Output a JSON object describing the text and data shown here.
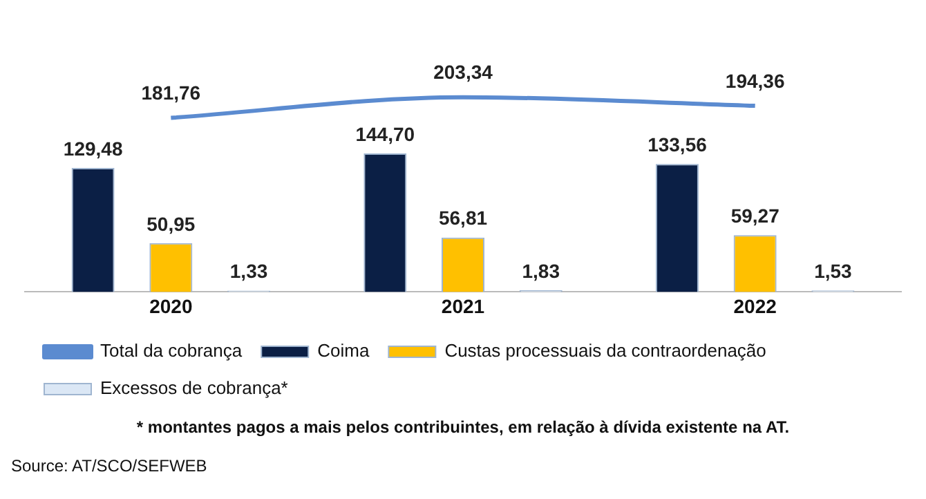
{
  "chart_data": {
    "type": "bar",
    "categories": [
      "2020",
      "2021",
      "2022"
    ],
    "series": [
      {
        "name": "Coima",
        "color": "#0b1f45",
        "values": [
          129.48,
          144.7,
          133.56
        ],
        "value_labels": [
          "129,48",
          "144,70",
          "133,56"
        ]
      },
      {
        "name": "Custas processuais da contraordenação",
        "color": "#ffc000",
        "values": [
          50.95,
          56.81,
          59.27
        ],
        "value_labels": [
          "50,95",
          "56,81",
          "59,27"
        ]
      },
      {
        "name": "Excessos de cobrança*",
        "color": "#dbe7f5",
        "values": [
          1.33,
          1.83,
          1.53
        ],
        "value_labels": [
          "1,33",
          "1,83",
          "1,53"
        ]
      },
      {
        "name": "Total da cobrança",
        "type": "line",
        "color": "#5b8bd0",
        "marker": "none",
        "values": [
          181.76,
          203.34,
          194.36
        ],
        "value_labels": [
          "181,76",
          "203,34",
          "194,36"
        ]
      }
    ],
    "tick_labels": "x",
    "grid": false,
    "legend": "bottom",
    "annotations": [
      "* montantes pagos a mais pelos contribuintes, em relação à dívida existente na AT.",
      "Source: AT/SCO/SEFWEB"
    ]
  }
}
